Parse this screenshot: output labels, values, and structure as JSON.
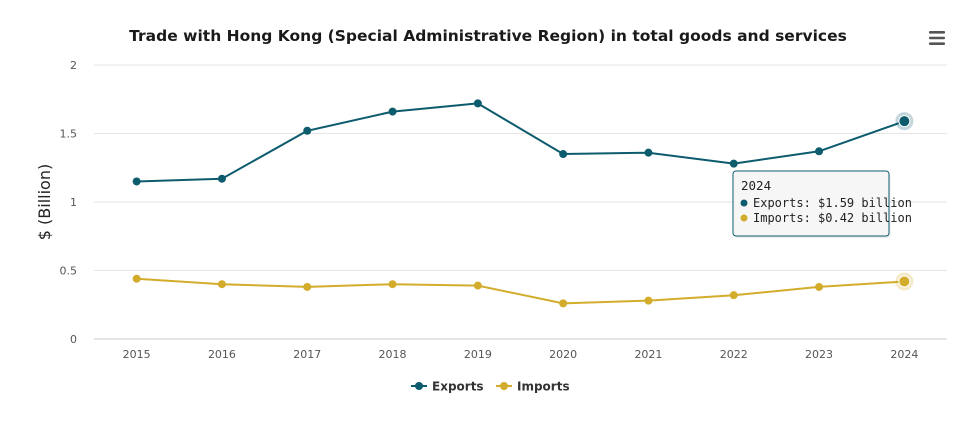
{
  "chart_data": {
    "type": "line",
    "title": "Trade with Hong Kong (Special Administrative Region) in total goods and services",
    "xlabel": "",
    "ylabel": "$ (Billion)",
    "ylim": [
      0,
      2
    ],
    "yticks": [
      "0",
      "0.5",
      "1",
      "1.5",
      "2"
    ],
    "categories": [
      "2015",
      "2016",
      "2017",
      "2018",
      "2019",
      "2020",
      "2021",
      "2022",
      "2023",
      "2024"
    ],
    "series": [
      {
        "name": "Exports",
        "color": "#0d5c6e",
        "values": [
          1.15,
          1.17,
          1.52,
          1.66,
          1.72,
          1.35,
          1.36,
          1.28,
          1.37,
          1.59
        ]
      },
      {
        "name": "Imports",
        "color": "#d4ac2b",
        "values": [
          0.44,
          0.4,
          0.38,
          0.4,
          0.39,
          0.26,
          0.28,
          0.32,
          0.38,
          0.42
        ]
      }
    ],
    "grid": true,
    "legend": "bottom-center",
    "highlight_index": 9,
    "tooltip": {
      "header": "2024",
      "lines": [
        "Exports: $1.59 billion",
        "Imports: $0.42 billion"
      ]
    }
  },
  "menu_icon": "hamburger-menu-icon"
}
